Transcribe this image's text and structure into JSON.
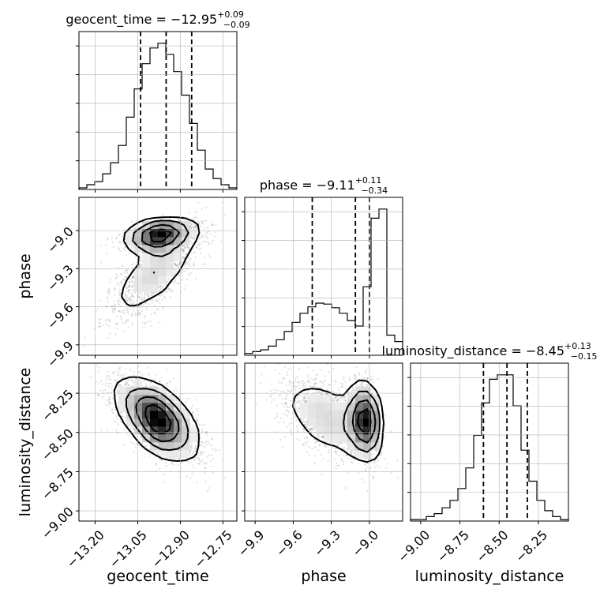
{
  "chart_data": {
    "type": "scatter",
    "parameters": [
      "geocent_time",
      "phase",
      "luminosity_distance"
    ],
    "ranges": {
      "geocent_time": [
        -13.257,
        -12.701
      ],
      "phase": [
        -9.982,
        -8.738
      ],
      "luminosity_distance": [
        -9.065,
        -8.058
      ]
    },
    "ticks": {
      "geocent_time": [
        -13.2,
        -13.05,
        -12.9,
        -12.75
      ],
      "phase": [
        -9.9,
        -9.6,
        -9.3,
        -9.0
      ],
      "luminosity_distance": [
        -9.0,
        -8.75,
        -8.5,
        -8.25
      ]
    },
    "tick_labels": {
      "geocent_time": [
        "−13.20",
        "−13.05",
        "−12.90",
        "−12.75"
      ],
      "phase": [
        "−9.9",
        "−9.6",
        "−9.3",
        "−9.0"
      ],
      "luminosity_distance": [
        "−9.00",
        "−8.75",
        "−8.50",
        "−8.25"
      ]
    },
    "axis_labels": {
      "geocent_time": "geocent_time",
      "phase": "phase",
      "luminosity_distance": "luminosity_distance"
    },
    "titles": [
      {
        "param": "geocent_time",
        "base": "geocent_time = −12.95",
        "sup": "+0.09",
        "sub": "−0.09"
      },
      {
        "param": "phase",
        "base": "phase = −9.11",
        "sup": "+0.11",
        "sub": "−0.34"
      },
      {
        "param": "luminosity_distance",
        "base": "luminosity_distance = −8.45",
        "sup": "+0.13",
        "sub": "−0.15"
      }
    ],
    "quantiles": {
      "geocent_time": [
        -13.04,
        -12.95,
        -12.86
      ],
      "phase": [
        -9.45,
        -9.11,
        -9.0
      ],
      "luminosity_distance": [
        -8.6,
        -8.45,
        -8.32
      ]
    },
    "histograms": {
      "geocent_time": [
        1,
        3,
        5,
        10,
        17,
        28,
        46,
        64,
        80,
        90,
        93,
        86,
        75,
        60,
        42,
        25,
        13,
        7,
        3,
        1
      ],
      "phase": [
        2,
        4,
        6,
        10,
        17,
        26,
        36,
        46,
        53,
        57,
        56,
        52,
        46,
        38,
        32,
        75,
        150,
        160,
        22,
        15
      ],
      "luminosity_distance": [
        1,
        1,
        3,
        5,
        9,
        14,
        22,
        36,
        58,
        80,
        96,
        99,
        99,
        78,
        48,
        27,
        14,
        7,
        3,
        1
      ]
    },
    "grid": true
  }
}
